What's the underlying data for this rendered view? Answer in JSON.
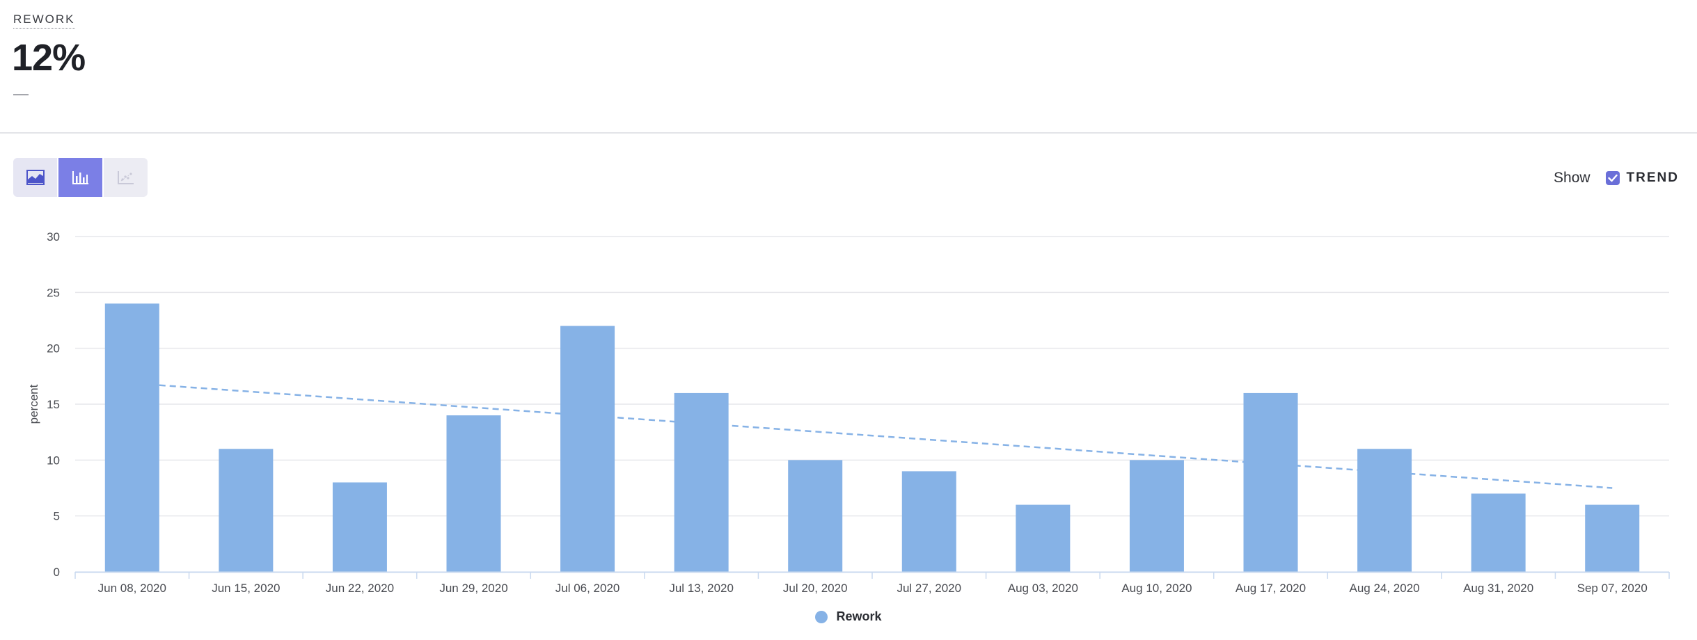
{
  "metric": {
    "label": "REWORK",
    "value": "12%",
    "sub": "—"
  },
  "toolbar": {
    "buttons": [
      {
        "name": "area-chart",
        "icon": "area-chart-icon",
        "active": false
      },
      {
        "name": "bar-chart",
        "icon": "bar-chart-icon",
        "active": true
      },
      {
        "name": "scatter-chart",
        "icon": "scatter-chart-icon",
        "active": false,
        "disabled": true
      }
    ]
  },
  "show": {
    "label": "Show",
    "trend_label": "TREND",
    "trend_checked": true
  },
  "colors": {
    "bar": "#86b2e6",
    "trend": "#86b2e6",
    "accent": "#7b7fe6"
  },
  "chart_data": {
    "type": "bar",
    "categories": [
      "Jun 08, 2020",
      "Jun 15, 2020",
      "Jun 22, 2020",
      "Jun 29, 2020",
      "Jul 06, 2020",
      "Jul 13, 2020",
      "Jul 20, 2020",
      "Jul 27, 2020",
      "Aug 03, 2020",
      "Aug 10, 2020",
      "Aug 17, 2020",
      "Aug 24, 2020",
      "Aug 31, 2020",
      "Sep 07, 2020"
    ],
    "series": [
      {
        "name": "Rework",
        "values": [
          24,
          11,
          8,
          14,
          22,
          16,
          10,
          9,
          6,
          10,
          16,
          11,
          7,
          6
        ]
      }
    ],
    "trend": {
      "start": 16.7,
      "end": 7.5
    },
    "ylabel": "percent",
    "xlabel": "",
    "ylim": [
      0,
      30
    ],
    "yticks": [
      0,
      5,
      10,
      15,
      20,
      25,
      30
    ],
    "grid": true,
    "legend_position": "bottom"
  }
}
